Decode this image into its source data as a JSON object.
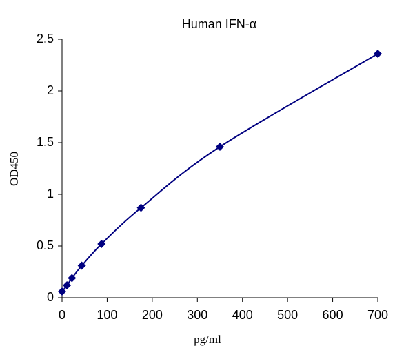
{
  "chart_data": {
    "type": "scatter",
    "title": "Human IFN-α",
    "x_label": "pg/ml",
    "y_label": "OD450",
    "series": [
      {
        "name": "Human IFN-α",
        "color": "#000080",
        "x": [
          0,
          10.9,
          21.9,
          43.75,
          87.5,
          175,
          350,
          700
        ],
        "values": [
          0.06,
          0.12,
          0.19,
          0.31,
          0.52,
          0.87,
          1.46,
          2.36
        ]
      }
    ],
    "xlim": [
      0,
      700
    ],
    "xticks": [
      0,
      100,
      200,
      300,
      400,
      500,
      600,
      700
    ],
    "ylim": [
      0,
      2.5
    ],
    "yticks": [
      0,
      0.5,
      1,
      1.5,
      2,
      2.5
    ],
    "grid": false
  }
}
